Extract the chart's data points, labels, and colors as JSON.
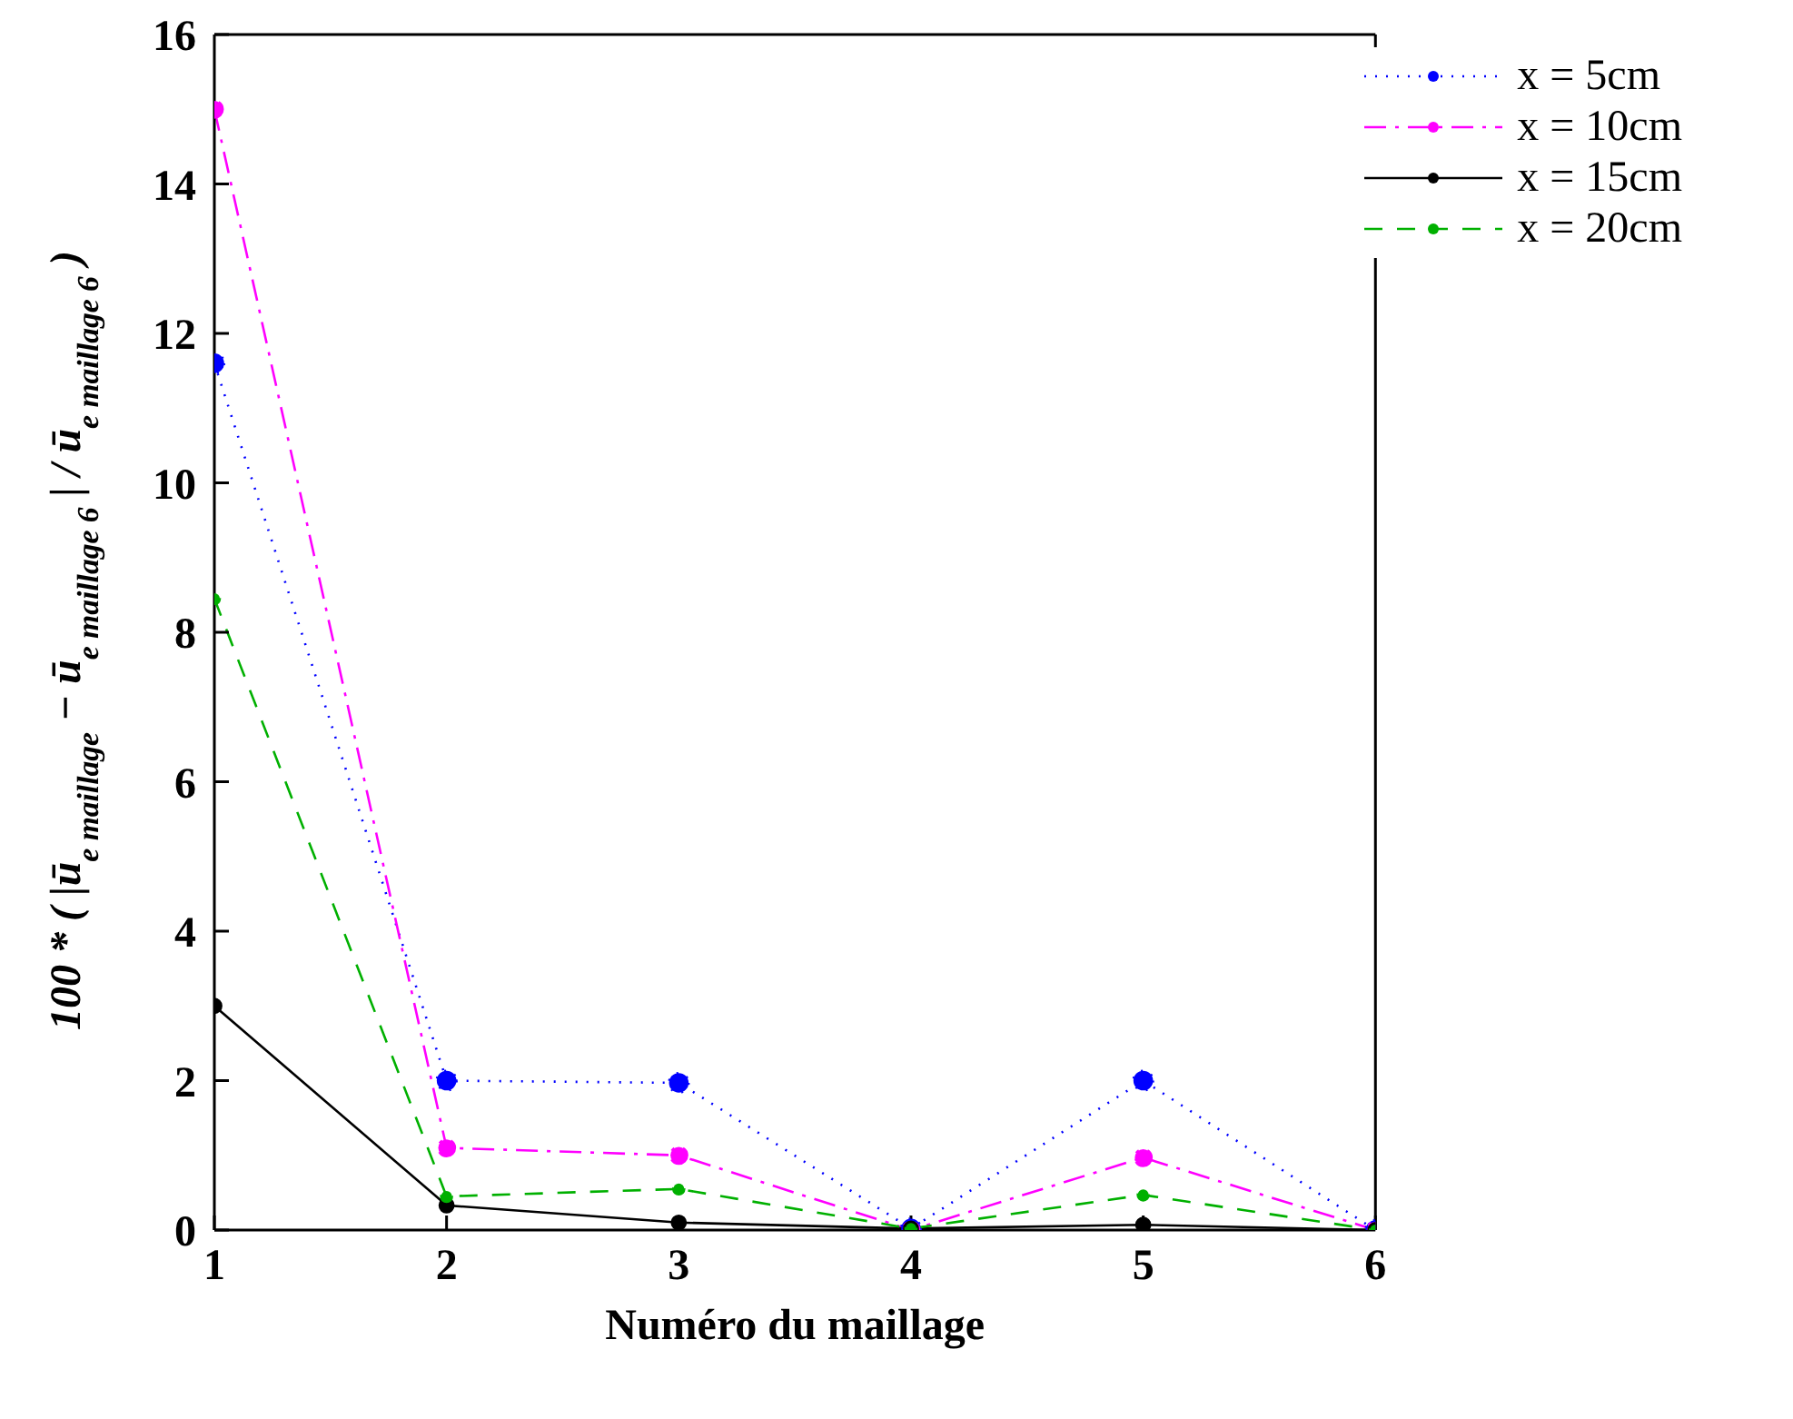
{
  "chart_data": {
    "type": "line",
    "xlabel": "Numéro du maillage",
    "ylabel": "100 * ( |ū$_{e maillage}$ − ū$_{e maillage 6}$| / ū$_{e maillage 6}$ )",
    "x": [
      1,
      2,
      3,
      4,
      5,
      6
    ],
    "xlim": [
      1,
      6
    ],
    "xticks": [
      1,
      2,
      3,
      4,
      5,
      6
    ],
    "ylim": [
      0,
      16
    ],
    "yticks": [
      0,
      2,
      4,
      6,
      8,
      10,
      12,
      14,
      16
    ],
    "grid": false,
    "legend": "top right",
    "marker": "circle",
    "series": [
      {
        "name": "x = 5cm",
        "color": "#0000ff",
        "line_style": "dotted",
        "values": [
          11.6,
          2.0,
          1.97,
          0.02,
          2.0,
          0
        ]
      },
      {
        "name": "x = 10cm",
        "color": "#ff00ff",
        "line_style": "dashdot",
        "values": [
          15.0,
          1.1,
          1.0,
          0.0,
          0.97,
          0
        ]
      },
      {
        "name": "x = 15cm",
        "color": "#000000",
        "line_style": "solid",
        "values": [
          3.0,
          0.33,
          0.1,
          0.02,
          0.07,
          0
        ]
      },
      {
        "name": "x = 20cm",
        "color": "#00b000",
        "line_style": "dashed",
        "values": [
          8.45,
          0.45,
          0.55,
          0.02,
          0.47,
          0
        ]
      }
    ]
  }
}
